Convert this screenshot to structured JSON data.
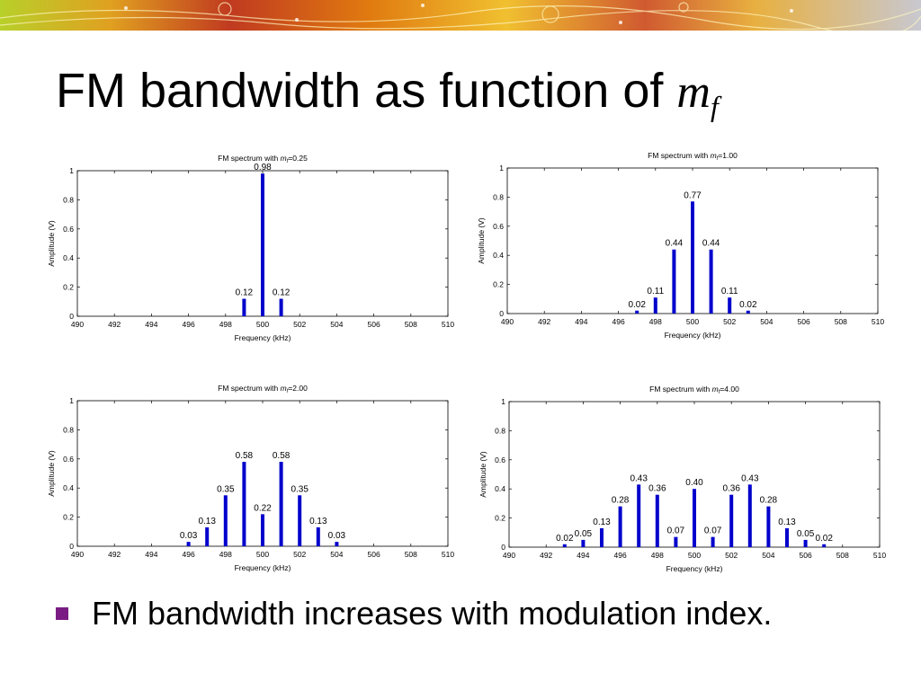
{
  "slide": {
    "title_text": "FM bandwidth as function of ",
    "title_var": "m",
    "title_sub": "f",
    "bullet": "FM bandwidth increases with modulation index.",
    "bullet_color": "#7b1c84"
  },
  "chart_data": [
    {
      "type": "bar",
      "title_prefix": "FM spectrum with ",
      "title_var": "m",
      "title_sub": "f",
      "title_suffix": "=0.25",
      "xlabel": "Frequency (kHz)",
      "ylabel": "Amplitude (V)",
      "xlim": [
        490,
        510
      ],
      "ylim": [
        0,
        1
      ],
      "xticks": [
        "490",
        "492",
        "494",
        "496",
        "498",
        "500",
        "502",
        "504",
        "506",
        "508",
        "510"
      ],
      "yticks": [
        "0",
        "0.2",
        "0.4",
        "0.6",
        "0.8",
        "1"
      ],
      "bar_color": "#0000cc",
      "x": [
        499,
        500,
        501
      ],
      "values": [
        0.12,
        0.98,
        0.12
      ],
      "labels": [
        "0.12",
        "0.98",
        "0.12"
      ]
    },
    {
      "type": "bar",
      "title_prefix": "FM spectrum with ",
      "title_var": "m",
      "title_sub": "f",
      "title_suffix": "=1.00",
      "xlabel": "Frequency (kHz)",
      "ylabel": "Amplitude (V)",
      "xlim": [
        490,
        510
      ],
      "ylim": [
        0,
        1
      ],
      "xticks": [
        "490",
        "492",
        "494",
        "496",
        "498",
        "500",
        "502",
        "504",
        "506",
        "508",
        "510"
      ],
      "yticks": [
        "0",
        "0.2",
        "0.4",
        "0.6",
        "0.8",
        "1"
      ],
      "bar_color": "#0000cc",
      "x": [
        497,
        498,
        499,
        500,
        501,
        502,
        503
      ],
      "values": [
        0.02,
        0.11,
        0.44,
        0.77,
        0.44,
        0.11,
        0.02
      ],
      "labels": [
        "0.02",
        "0.11",
        "0.44",
        "0.77",
        "0.44",
        "0.11",
        "0.02"
      ]
    },
    {
      "type": "bar",
      "title_prefix": "FM spectrum with ",
      "title_var": "m",
      "title_sub": "f",
      "title_suffix": "=2.00",
      "xlabel": "Frequency (kHz)",
      "ylabel": "Amplitude (V)",
      "xlim": [
        490,
        510
      ],
      "ylim": [
        0,
        1
      ],
      "xticks": [
        "490",
        "492",
        "494",
        "496",
        "498",
        "500",
        "502",
        "504",
        "506",
        "508",
        "510"
      ],
      "yticks": [
        "0",
        "0.2",
        "0.4",
        "0.6",
        "0.8",
        "1"
      ],
      "bar_color": "#0000cc",
      "x": [
        496,
        497,
        498,
        499,
        500,
        501,
        502,
        503,
        504
      ],
      "values": [
        0.03,
        0.13,
        0.35,
        0.58,
        0.22,
        0.58,
        0.35,
        0.13,
        0.03
      ],
      "labels": [
        "0.03",
        "0.13",
        "0.35",
        "0.58",
        "0.22",
        "0.58",
        "0.35",
        "0.13",
        "0.03"
      ]
    },
    {
      "type": "bar",
      "title_prefix": "FM spectrum with ",
      "title_var": "m",
      "title_sub": "f",
      "title_suffix": "=4.00",
      "xlabel": "Frequency (kHz)",
      "ylabel": "Amplitude (V)",
      "xlim": [
        490,
        510
      ],
      "ylim": [
        0,
        1
      ],
      "xticks": [
        "490",
        "492",
        "494",
        "496",
        "498",
        "500",
        "502",
        "504",
        "506",
        "508",
        "510"
      ],
      "yticks": [
        "0",
        "0.2",
        "0.4",
        "0.6",
        "0.8",
        "1"
      ],
      "bar_color": "#0000cc",
      "x": [
        493,
        494,
        495,
        496,
        497,
        498,
        499,
        500,
        501,
        502,
        503,
        504,
        505,
        506,
        507
      ],
      "values": [
        0.02,
        0.05,
        0.13,
        0.28,
        0.43,
        0.36,
        0.07,
        0.4,
        0.07,
        0.36,
        0.43,
        0.28,
        0.13,
        0.05,
        0.02
      ],
      "labels": [
        "0.02",
        "0.05",
        "0.13",
        "0.28",
        "0.43",
        "0.36",
        "0.07",
        "0.40",
        "0.07",
        "0.36",
        "0.43",
        "0.28",
        "0.13",
        "0.05",
        "0.02"
      ]
    }
  ]
}
